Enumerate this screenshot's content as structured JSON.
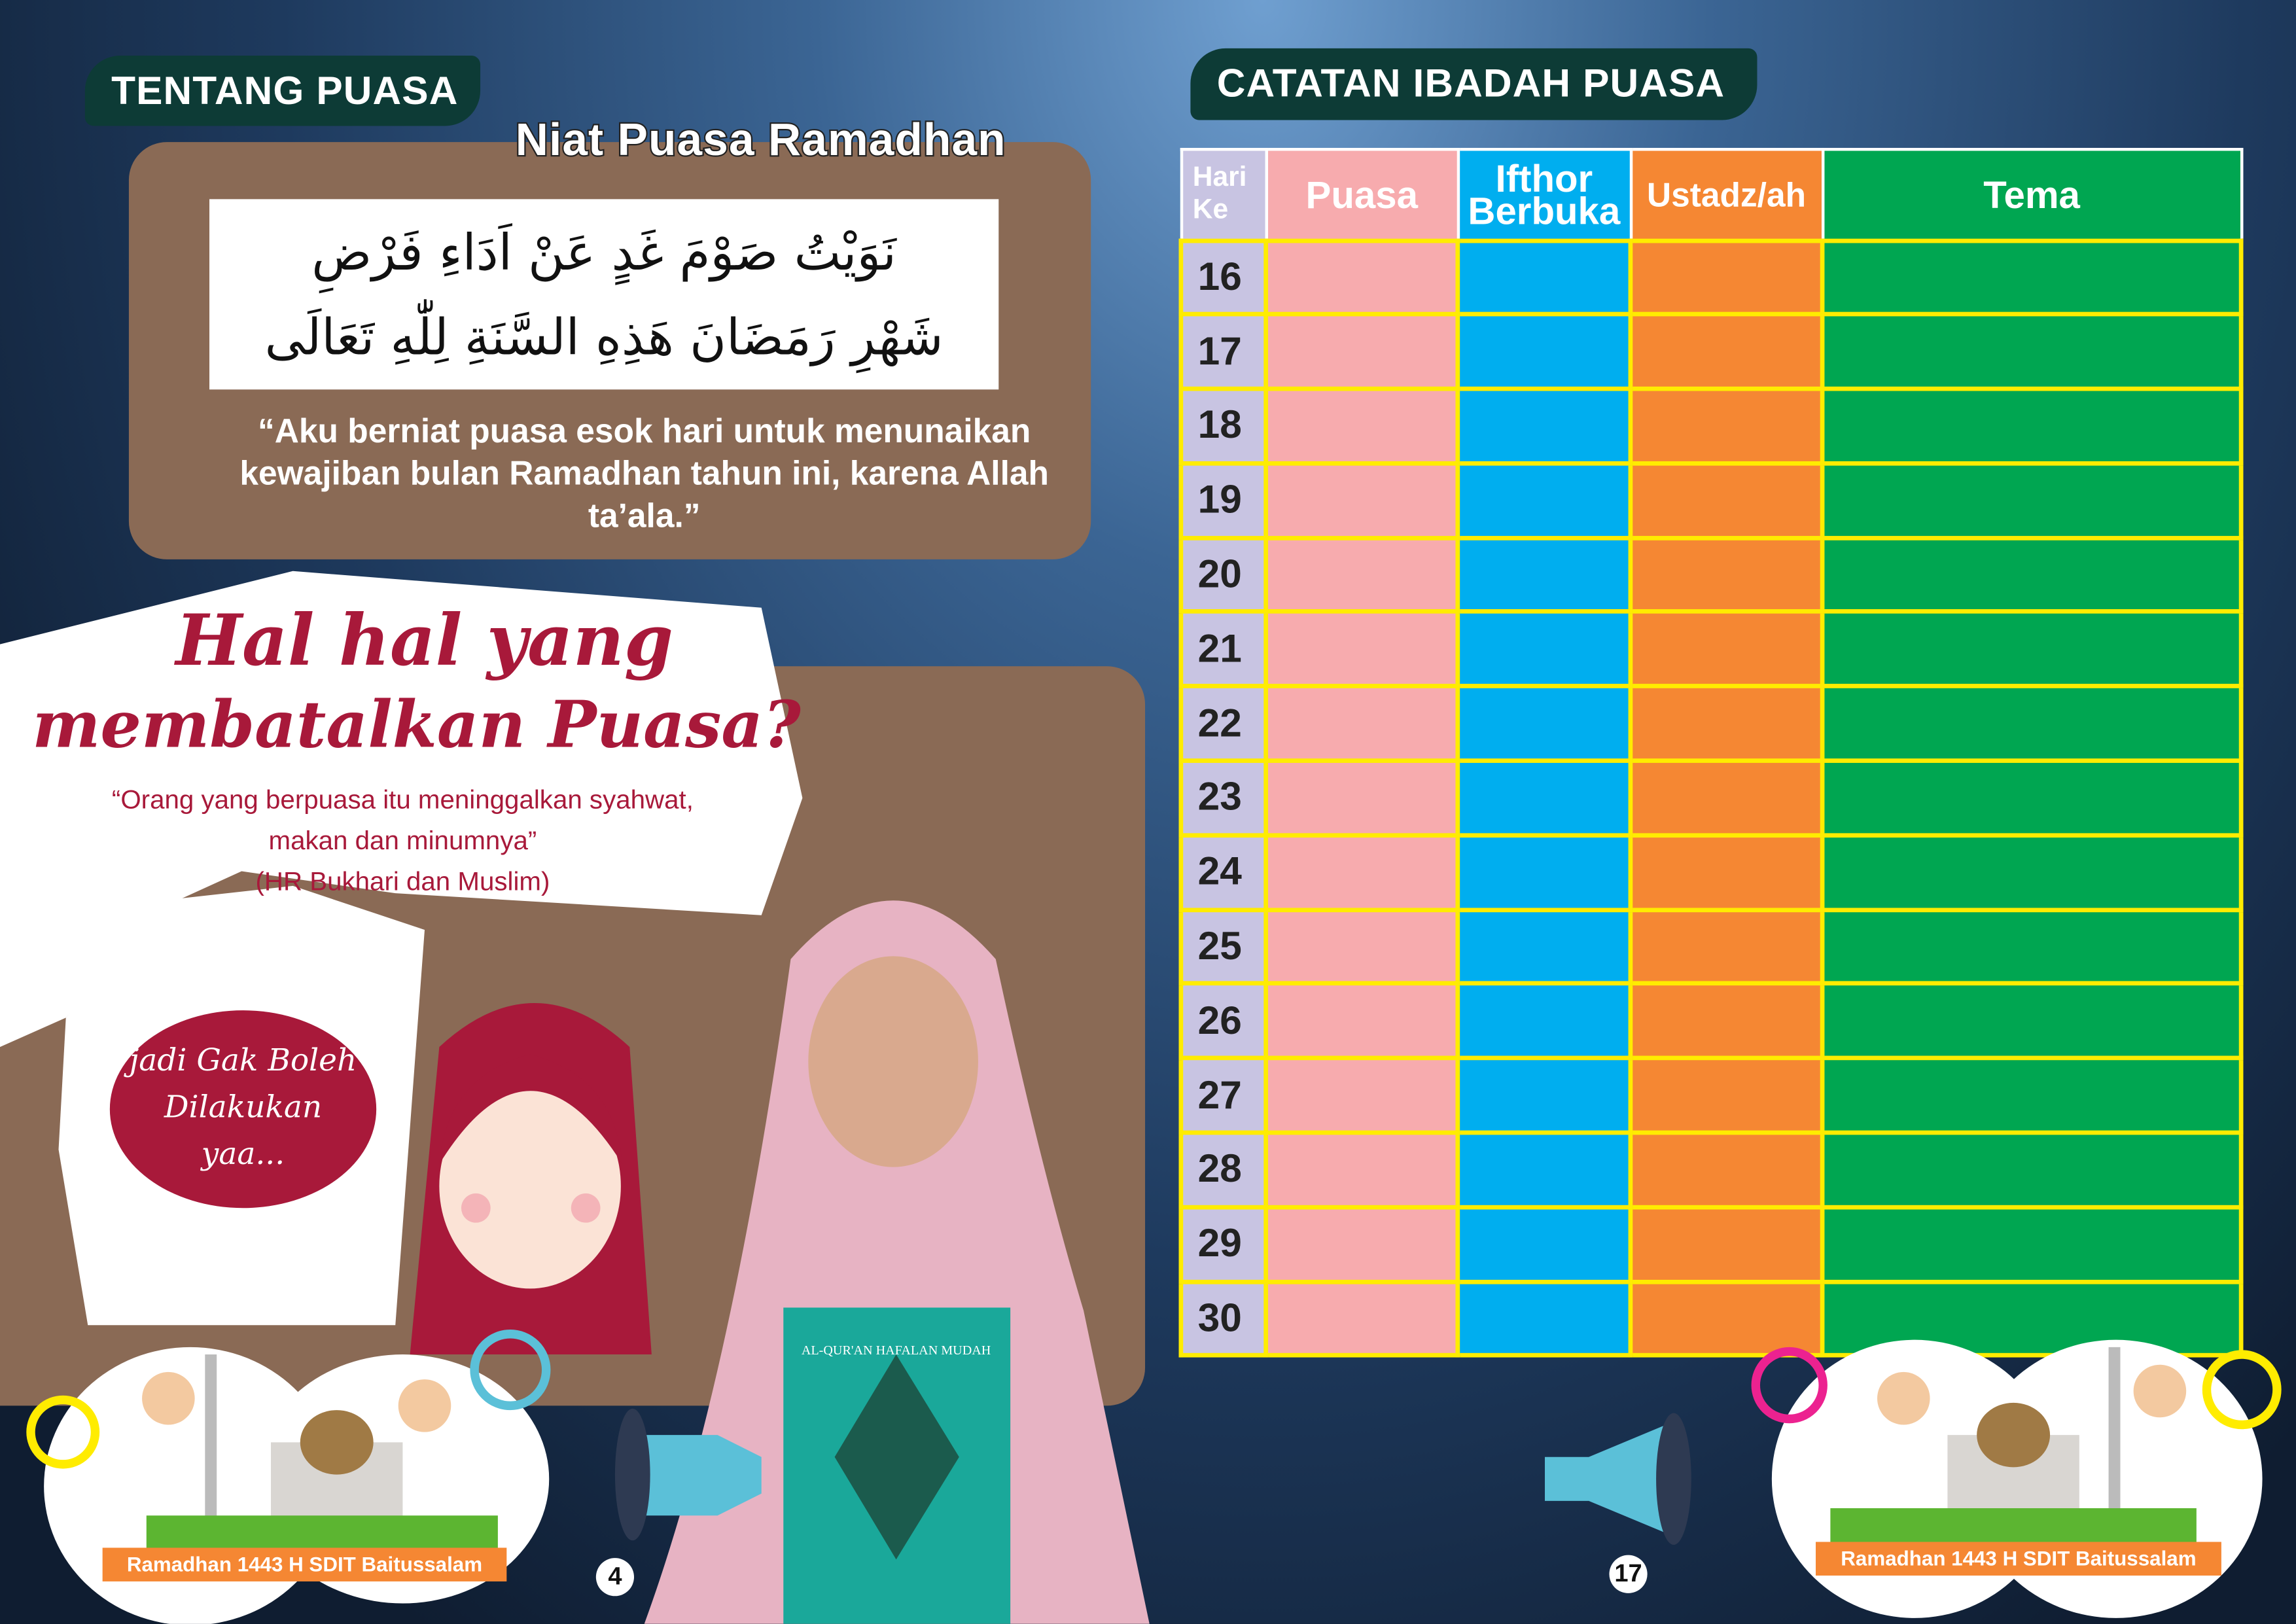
{
  "left_page": {
    "section_tab": "TENTANG PUASA",
    "niat_title": "Niat Puasa Ramadhan",
    "arabic_line1": "نَوَيْتُ صَوْمَ غَدٍ عَنْ اَدَاءِ فَرْضِ",
    "arabic_line2": "شَهْرِ رَمَضَانَ هَذِهِ السَّنَةِ لِلّٰهِ تَعَالَى",
    "translation": "“Aku berniat puasa esok hari untuk menunaikan kewajiban bulan Ramadhan tahun ini, karena Allah ta’ala.”",
    "heading_line1": "Hal hal yang",
    "heading_line2": "membatalkan Puasa?",
    "hadith_line1": "“Orang yang berpuasa itu meninggalkan syahwat,",
    "hadith_line2": "makan dan minumnya”",
    "hadith_source": "(HR Bukhari dan Muslim)",
    "bubble_line1": "jadi Gak Boleh",
    "bubble_line2": "Dilakukan",
    "bubble_line3": "yaa...",
    "book_title": "AL-QUR'AN HAFALAN MUDAH",
    "footer_label": "Ramadhan 1443 H SDIT Baitussalam",
    "page_number": "4"
  },
  "right_page": {
    "section_tab": "CATATAN IBADAH PUASA",
    "table": {
      "headers": [
        "Hari Ke",
        "Puasa",
        "Ifthor Berbuka",
        "Ustadz/ah",
        "Tema"
      ],
      "header_line": {
        "hari1": "Hari",
        "hari2": "Ke",
        "ifthor1": "Ifthor",
        "ifthor2": "Berbuka"
      },
      "days": [
        "16",
        "17",
        "18",
        "19",
        "20",
        "21",
        "22",
        "23",
        "24",
        "25",
        "26",
        "27",
        "28",
        "29",
        "30"
      ],
      "column_colors": [
        "#c8c4e2",
        "#f7abae",
        "#00aeef",
        "#f58733",
        "#00a651"
      ],
      "grid_color": "#ffec00"
    },
    "footer_label": "Ramadhan 1443 H SDIT Baitussalam",
    "page_number": "17"
  },
  "colors": {
    "tab": "#0d3b36",
    "brown_panel": "#8a6a55",
    "accent_red": "#a8193a",
    "label_orange": "#f58733"
  }
}
